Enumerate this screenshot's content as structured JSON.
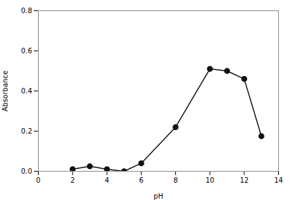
{
  "chart_data": {
    "type": "line",
    "x": [
      2,
      3,
      4,
      5,
      6,
      8,
      10,
      11,
      12,
      13
    ],
    "values": [
      0.01,
      0.025,
      0.01,
      0.0,
      0.04,
      0.22,
      0.51,
      0.5,
      0.46,
      0.175
    ],
    "xlabel": "pH",
    "ylabel": "Absorbance",
    "xlim": [
      0,
      14
    ],
    "ylim": [
      0,
      0.8
    ],
    "xticks": [
      0,
      2,
      4,
      6,
      8,
      10,
      12,
      14
    ],
    "yticks": [
      {
        "value": 0.0,
        "label": "0.0"
      },
      0.2,
      0.4,
      0.6,
      0.8
    ],
    "color": "#111111",
    "marker": "circle"
  }
}
